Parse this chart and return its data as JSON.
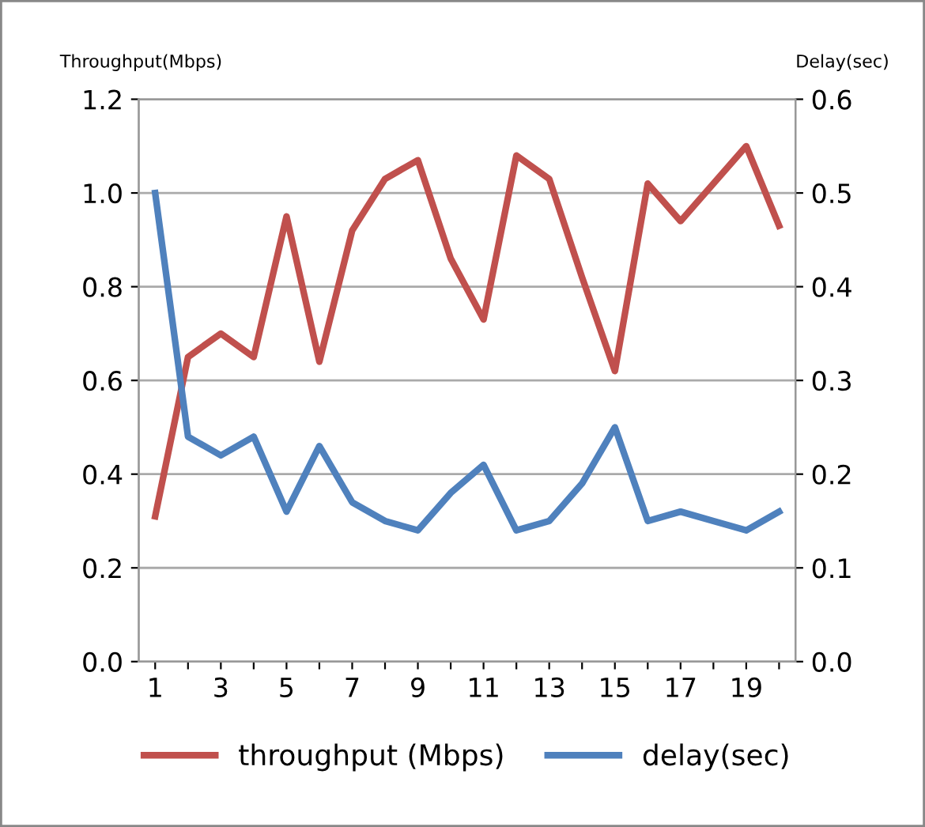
{
  "chart_data": {
    "type": "line",
    "categories": [
      "1",
      null,
      "3",
      null,
      "5",
      null,
      "7",
      null,
      "9",
      null,
      "11",
      null,
      "13",
      null,
      "15",
      null,
      "17",
      null,
      "19",
      null
    ],
    "ylabel": "Throughput(Mbps)",
    "y2label": "Delay(sec)",
    "ylim": [
      0,
      1.2
    ],
    "yticks": [
      {
        "value": 0,
        "label": "0.0"
      },
      0.2,
      0.4,
      0.6,
      0.8,
      {
        "value": 1,
        "label": "1.0"
      },
      1.2
    ],
    "y2lim": [
      0,
      0.6
    ],
    "y2ticks": [
      {
        "value": 0,
        "label": "0.0"
      },
      0.1,
      0.2,
      0.3,
      0.4,
      0.5,
      0.6
    ],
    "grid": "y",
    "legend": "bottom",
    "marker": "none",
    "line_style": "solid",
    "series": [
      {
        "name": "throughput (Mbps)",
        "color": "#c0504d",
        "values": [
          0.31,
          0.65,
          0.7,
          0.65,
          0.95,
          0.64,
          0.92,
          1.03,
          1.07,
          0.86,
          0.73,
          1.08,
          1.03,
          0.82,
          0.62,
          1.02,
          0.94,
          1.02,
          1.1,
          0.93
        ]
      },
      {
        "name": "delay(sec)",
        "color": "#4f81bd",
        "axis": "y2",
        "values": [
          0.5,
          0.24,
          0.22,
          0.24,
          0.16,
          0.23,
          0.17,
          0.15,
          0.14,
          0.18,
          0.21,
          0.14,
          0.15,
          0.19,
          0.25,
          0.15,
          0.16,
          0.15,
          0.14,
          0.16
        ]
      }
    ]
  }
}
